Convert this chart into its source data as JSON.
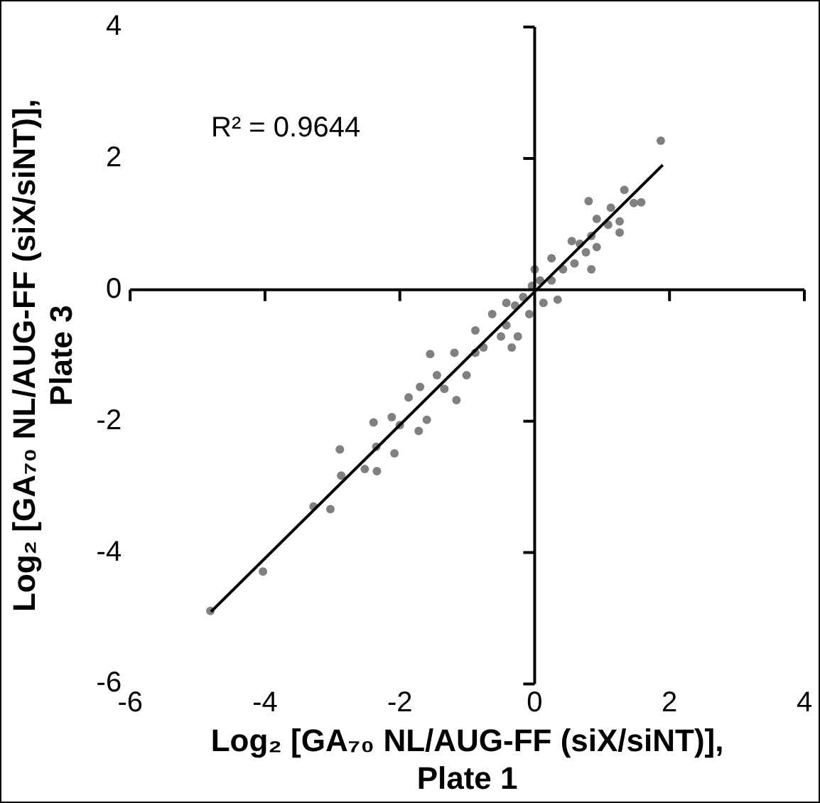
{
  "chart_data": {
    "type": "scatter",
    "xlabel": "Log₂ [GA₇₀ NL/AUG-FF (siX/siNT)],\nPlate 1",
    "ylabel": "Log₂ [GA₇₀ NL/AUG-FF (siX/siNT)],\nPlate 3",
    "annotations": [
      "R² = 0.9644"
    ],
    "xlim": [
      -6,
      4
    ],
    "ylim": [
      -6,
      4
    ],
    "xticks": [
      -6,
      -4,
      -2,
      0,
      2,
      4
    ],
    "yticks": [
      -6,
      -4,
      -2,
      0,
      2,
      4
    ],
    "legend": false,
    "marker": "circle",
    "series": [
      {
        "color": "#808080",
        "x": [
          1.87,
          -4.81,
          -4.03,
          -3.03,
          -3.28,
          -2.89,
          -2.87,
          -2.52,
          -2.34,
          -2.39,
          -2.35,
          -2.08,
          -2.12,
          -2.0,
          -1.87,
          -1.72,
          -1.6,
          -1.7,
          -1.55,
          -1.45,
          -1.34,
          -1.16,
          -1.19,
          -1.01,
          -0.88,
          -0.76,
          -0.63,
          -0.5,
          -0.42,
          -0.25,
          -0.29,
          -0.17,
          -0.04,
          0.08,
          0.13,
          0.25,
          0.34,
          0.25,
          0.42,
          0.55,
          0.59,
          0.76,
          0.84,
          0.92,
          0.8,
          0.92,
          1.13,
          1.09,
          1.26,
          1.26,
          1.33,
          1.58,
          1.47,
          0.84,
          0.67,
          -0.34,
          -0.88,
          -0.42,
          0,
          -0.08
        ],
        "values": [
          2.27,
          -4.89,
          -4.29,
          -3.34,
          -3.3,
          -2.43,
          -2.83,
          -2.73,
          -2.76,
          -2.02,
          -2.39,
          -2.49,
          -1.94,
          -2.06,
          -1.64,
          -2.15,
          -1.98,
          -1.48,
          -0.98,
          -1.3,
          -1.51,
          -1.68,
          -0.96,
          -1.3,
          -0.62,
          -0.88,
          -0.37,
          -0.71,
          -0.54,
          -0.71,
          -0.24,
          -0.11,
          0.06,
          0.14,
          -0.2,
          0.14,
          -0.15,
          0.48,
          0.31,
          0.74,
          0.4,
          0.57,
          0.82,
          0.65,
          1.35,
          1.08,
          1.25,
          0.99,
          1.04,
          0.87,
          1.52,
          1.33,
          1.32,
          0.31,
          0.7,
          -0.88,
          -0.96,
          -0.2,
          0.31,
          -0.37
        ]
      },
      {
        "type": "line",
        "marker": "none",
        "color": "#000000",
        "x": [
          -4.8,
          1.9
        ],
        "values": [
          -4.9,
          1.9
        ]
      }
    ]
  }
}
